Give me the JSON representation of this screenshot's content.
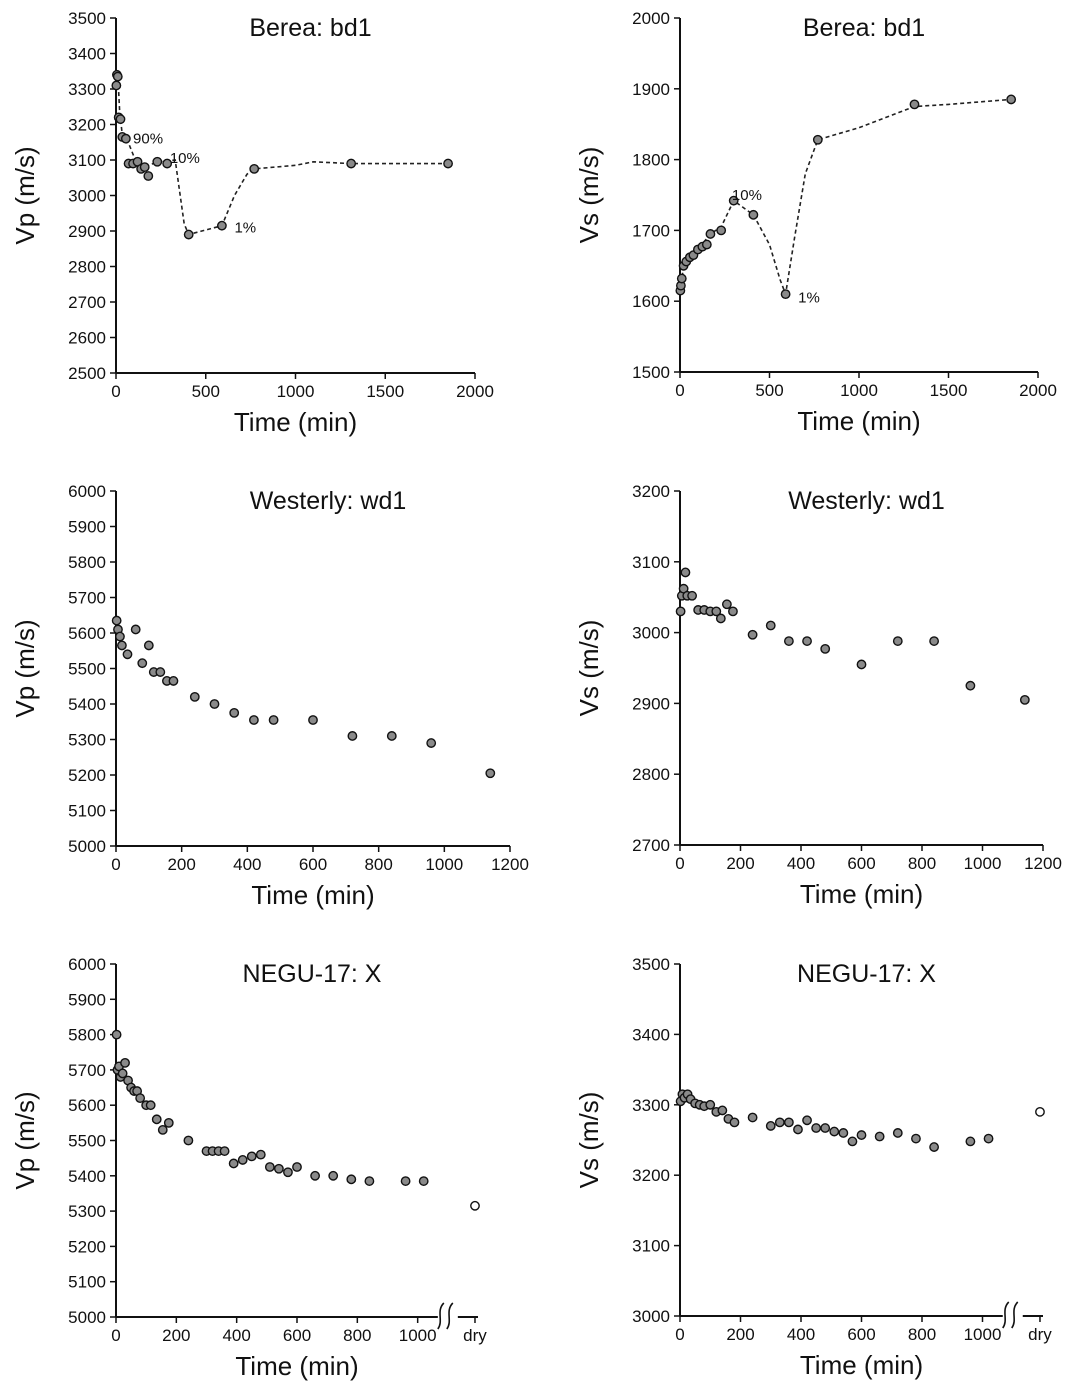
{
  "chart_data": [
    {
      "type": "scatter",
      "title": "Berea: bd1",
      "xlabel": "Time (min)",
      "ylabel": "Vp (m/s)",
      "xlim": [
        0,
        2000
      ],
      "ylim": [
        2500,
        3500
      ],
      "xticks": [
        0,
        500,
        1000,
        1500,
        2000
      ],
      "yticks": [
        2500,
        2600,
        2700,
        2800,
        2900,
        3000,
        3100,
        3200,
        3300,
        3400,
        3500
      ],
      "points": [
        [
          2,
          3310
        ],
        [
          5,
          3340
        ],
        [
          10,
          3335
        ],
        [
          15,
          3220
        ],
        [
          25,
          3215
        ],
        [
          35,
          3165
        ],
        [
          55,
          3160
        ],
        [
          70,
          3090
        ],
        [
          95,
          3090
        ],
        [
          120,
          3095
        ],
        [
          140,
          3075
        ],
        [
          160,
          3080
        ],
        [
          180,
          3055
        ],
        [
          230,
          3095
        ],
        [
          285,
          3090
        ],
        [
          405,
          2890
        ],
        [
          590,
          2915
        ],
        [
          770,
          3075
        ],
        [
          1310,
          3090
        ],
        [
          1850,
          3090
        ]
      ],
      "trend_line": [
        [
          2,
          3310
        ],
        [
          10,
          3340
        ],
        [
          20,
          3240
        ],
        [
          35,
          3170
        ],
        [
          60,
          3160
        ],
        [
          100,
          3110
        ],
        [
          160,
          3080
        ],
        [
          230,
          3095
        ],
        [
          330,
          3100
        ],
        [
          380,
          2920
        ],
        [
          405,
          2890
        ],
        [
          590,
          2915
        ],
        [
          660,
          3000
        ],
        [
          730,
          3060
        ],
        [
          770,
          3075
        ],
        [
          1000,
          3085
        ],
        [
          1100,
          3095
        ],
        [
          1310,
          3090
        ],
        [
          1850,
          3090
        ]
      ],
      "annotations": [
        {
          "text": "90%",
          "x": 95,
          "y": 3160
        },
        {
          "text": "10%",
          "x": 300,
          "y": 3105
        },
        {
          "text": "1%",
          "x": 660,
          "y": 2910
        }
      ]
    },
    {
      "type": "scatter",
      "title": "Berea: bd1",
      "xlabel": "Time (min)",
      "ylabel": "Vs (m/s)",
      "xlim": [
        0,
        2000
      ],
      "ylim": [
        1500,
        2000
      ],
      "xticks": [
        0,
        500,
        1000,
        1500,
        2000
      ],
      "yticks": [
        1500,
        1600,
        1700,
        1800,
        1900,
        2000
      ],
      "points": [
        [
          2,
          1615
        ],
        [
          5,
          1622
        ],
        [
          10,
          1632
        ],
        [
          20,
          1650
        ],
        [
          35,
          1656
        ],
        [
          55,
          1662
        ],
        [
          75,
          1665
        ],
        [
          100,
          1673
        ],
        [
          125,
          1677
        ],
        [
          150,
          1680
        ],
        [
          170,
          1695
        ],
        [
          230,
          1700
        ],
        [
          300,
          1742
        ],
        [
          410,
          1722
        ],
        [
          590,
          1610
        ],
        [
          770,
          1828
        ],
        [
          1310,
          1878
        ],
        [
          1850,
          1885
        ]
      ],
      "trend_line": [
        [
          2,
          1615
        ],
        [
          20,
          1650
        ],
        [
          100,
          1673
        ],
        [
          170,
          1695
        ],
        [
          230,
          1705
        ],
        [
          300,
          1742
        ],
        [
          410,
          1722
        ],
        [
          500,
          1680
        ],
        [
          560,
          1630
        ],
        [
          590,
          1610
        ],
        [
          640,
          1690
        ],
        [
          700,
          1780
        ],
        [
          770,
          1828
        ],
        [
          1000,
          1845
        ],
        [
          1310,
          1875
        ],
        [
          1500,
          1878
        ],
        [
          1850,
          1885
        ]
      ],
      "annotations": [
        {
          "text": "10%",
          "x": 290,
          "y": 1750
        },
        {
          "text": "1%",
          "x": 660,
          "y": 1605
        }
      ]
    },
    {
      "type": "scatter",
      "title": "Westerly: wd1",
      "xlabel": "Time (min)",
      "ylabel": "Vp (m/s)",
      "xlim": [
        0,
        1200
      ],
      "ylim": [
        5000,
        6000
      ],
      "xticks": [
        0,
        200,
        400,
        600,
        800,
        1000,
        1200
      ],
      "yticks": [
        5000,
        5100,
        5200,
        5300,
        5400,
        5500,
        5600,
        5700,
        5800,
        5900,
        6000
      ],
      "points": [
        [
          2,
          5635
        ],
        [
          6,
          5610
        ],
        [
          12,
          5590
        ],
        [
          18,
          5565
        ],
        [
          35,
          5540
        ],
        [
          60,
          5610
        ],
        [
          80,
          5515
        ],
        [
          100,
          5565
        ],
        [
          115,
          5490
        ],
        [
          135,
          5490
        ],
        [
          155,
          5465
        ],
        [
          175,
          5465
        ],
        [
          240,
          5420
        ],
        [
          300,
          5400
        ],
        [
          360,
          5375
        ],
        [
          420,
          5355
        ],
        [
          480,
          5355
        ],
        [
          600,
          5355
        ],
        [
          720,
          5310
        ],
        [
          840,
          5310
        ],
        [
          960,
          5290
        ],
        [
          1140,
          5205
        ]
      ]
    },
    {
      "type": "scatter",
      "title": "Westerly: wd1",
      "xlabel": "Time (min)",
      "ylabel": "Vs (m/s)",
      "xlim": [
        0,
        1200
      ],
      "ylim": [
        2700,
        3200
      ],
      "xticks": [
        0,
        200,
        400,
        600,
        800,
        1000,
        1200
      ],
      "yticks": [
        2700,
        2800,
        2900,
        3000,
        3100,
        3200
      ],
      "points": [
        [
          2,
          3030
        ],
        [
          6,
          3052
        ],
        [
          12,
          3062
        ],
        [
          18,
          3085
        ],
        [
          24,
          3052
        ],
        [
          40,
          3052
        ],
        [
          60,
          3032
        ],
        [
          80,
          3032
        ],
        [
          100,
          3030
        ],
        [
          120,
          3030
        ],
        [
          135,
          3020
        ],
        [
          155,
          3040
        ],
        [
          175,
          3030
        ],
        [
          240,
          2997
        ],
        [
          300,
          3010
        ],
        [
          360,
          2988
        ],
        [
          420,
          2988
        ],
        [
          480,
          2977
        ],
        [
          600,
          2955
        ],
        [
          720,
          2988
        ],
        [
          840,
          2988
        ],
        [
          960,
          2925
        ],
        [
          1140,
          2905
        ]
      ]
    },
    {
      "type": "scatter",
      "title": "NEGU-17: X",
      "xlabel": "Time (min)",
      "ylabel": "Vp (m/s)",
      "xlim": [
        0,
        1200
      ],
      "ylim": [
        5000,
        6000
      ],
      "xticks": [
        0,
        200,
        400,
        600,
        800,
        1000
      ],
      "x_extra_tick": {
        "label": "dry",
        "x": 1190
      },
      "axis_break_x": 1100,
      "yticks": [
        5000,
        5100,
        5200,
        5300,
        5400,
        5500,
        5600,
        5700,
        5800,
        5900,
        6000
      ],
      "points": [
        [
          2,
          5800
        ],
        [
          5,
          5700
        ],
        [
          10,
          5710
        ],
        [
          15,
          5680
        ],
        [
          22,
          5690
        ],
        [
          30,
          5720
        ],
        [
          40,
          5670
        ],
        [
          50,
          5650
        ],
        [
          60,
          5640
        ],
        [
          70,
          5640
        ],
        [
          80,
          5620
        ],
        [
          100,
          5600
        ],
        [
          115,
          5600
        ],
        [
          135,
          5560
        ],
        [
          155,
          5530
        ],
        [
          175,
          5550
        ],
        [
          240,
          5500
        ],
        [
          300,
          5470
        ],
        [
          320,
          5470
        ],
        [
          340,
          5470
        ],
        [
          360,
          5470
        ],
        [
          390,
          5435
        ],
        [
          420,
          5445
        ],
        [
          450,
          5455
        ],
        [
          480,
          5460
        ],
        [
          510,
          5425
        ],
        [
          540,
          5420
        ],
        [
          570,
          5410
        ],
        [
          600,
          5425
        ],
        [
          660,
          5400
        ],
        [
          720,
          5400
        ],
        [
          780,
          5390
        ],
        [
          840,
          5385
        ],
        [
          960,
          5385
        ],
        [
          1020,
          5385
        ]
      ],
      "open_points": [
        [
          1190,
          5315
        ]
      ]
    },
    {
      "type": "scatter",
      "title": "NEGU-17: X",
      "xlabel": "Time (min)",
      "ylabel": "Vs (m/s)",
      "xlim": [
        0,
        1200
      ],
      "ylim": [
        3000,
        3500
      ],
      "xticks": [
        0,
        200,
        400,
        600,
        800,
        1000
      ],
      "x_extra_tick": {
        "label": "dry",
        "x": 1190
      },
      "axis_break_x": 1100,
      "yticks": [
        3000,
        3100,
        3200,
        3300,
        3400,
        3500
      ],
      "points": [
        [
          2,
          3305
        ],
        [
          8,
          3315
        ],
        [
          15,
          3310
        ],
        [
          25,
          3315
        ],
        [
          35,
          3308
        ],
        [
          50,
          3302
        ],
        [
          65,
          3300
        ],
        [
          80,
          3298
        ],
        [
          100,
          3300
        ],
        [
          120,
          3290
        ],
        [
          140,
          3292
        ],
        [
          160,
          3280
        ],
        [
          180,
          3275
        ],
        [
          240,
          3282
        ],
        [
          300,
          3270
        ],
        [
          330,
          3275
        ],
        [
          360,
          3275
        ],
        [
          390,
          3265
        ],
        [
          420,
          3278
        ],
        [
          450,
          3267
        ],
        [
          480,
          3267
        ],
        [
          510,
          3262
        ],
        [
          540,
          3260
        ],
        [
          570,
          3248
        ],
        [
          600,
          3257
        ],
        [
          660,
          3255
        ],
        [
          720,
          3260
        ],
        [
          780,
          3252
        ],
        [
          840,
          3240
        ],
        [
          960,
          3248
        ],
        [
          1020,
          3252
        ]
      ],
      "open_points": [
        [
          1190,
          3290
        ]
      ]
    }
  ]
}
